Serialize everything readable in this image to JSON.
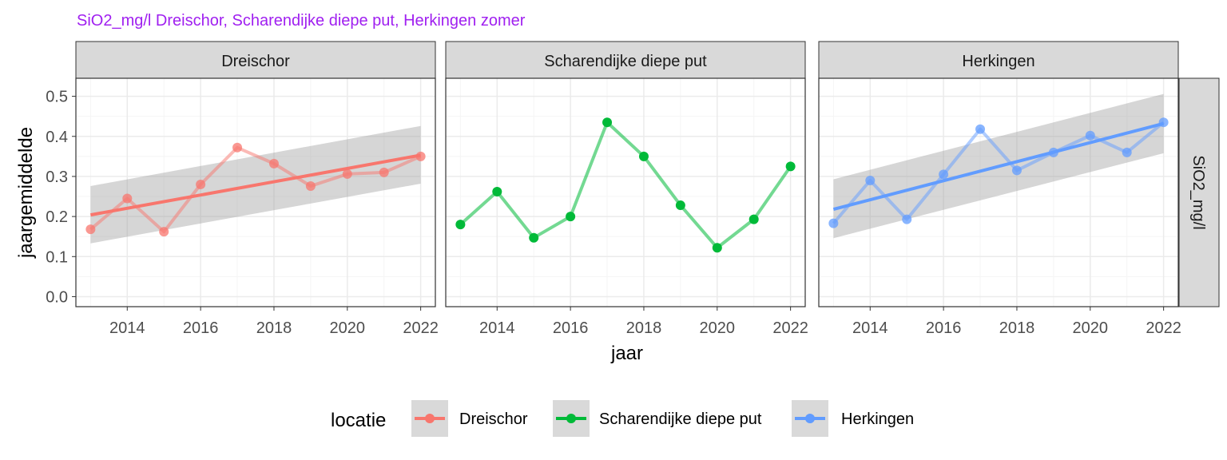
{
  "chart_data": {
    "type": "line",
    "title": "SiO2_mg/l Dreischor, Scharendijke diepe put, Herkingen zomer",
    "xlabel": "jaar",
    "ylabel": "jaargemiddelde",
    "strip_right": "SiO2_mg/l",
    "x": [
      2013,
      2014,
      2015,
      2016,
      2017,
      2018,
      2019,
      2020,
      2021,
      2022
    ],
    "xlim": [
      2012.6,
      2022.4
    ],
    "ylim": [
      -0.025,
      0.545
    ],
    "x_ticks": [
      2014,
      2016,
      2018,
      2020,
      2022
    ],
    "y_ticks": [
      0.0,
      0.1,
      0.2,
      0.3,
      0.4,
      0.5
    ],
    "y_tick_labels": [
      "0.0",
      "0.1",
      "0.2",
      "0.3",
      "0.4",
      "0.5"
    ],
    "grid": true,
    "legend": {
      "title": "locatie",
      "position": "bottom",
      "entries": [
        "Dreischor",
        "Scharendijke diepe put",
        "Herkingen"
      ]
    },
    "panels": [
      {
        "name": "Dreischor",
        "color": "#F8766D",
        "values": [
          0.168,
          0.245,
          0.162,
          0.28,
          0.372,
          0.332,
          0.276,
          0.306,
          0.31,
          0.35
        ],
        "trend": {
          "start": 0.204,
          "end": 0.353
        },
        "band": {
          "start_low": 0.133,
          "start_high": 0.276,
          "end_low": 0.282,
          "end_high": 0.426
        }
      },
      {
        "name": "Scharendijke diepe put",
        "color": "#00BA38",
        "values": [
          0.18,
          0.262,
          0.147,
          0.2,
          0.435,
          0.35,
          0.228,
          0.122,
          0.193,
          0.325
        ],
        "trend": null,
        "band": null
      },
      {
        "name": "Herkingen",
        "color": "#619CFF",
        "values": [
          0.183,
          0.29,
          0.193,
          0.305,
          0.418,
          0.315,
          0.36,
          0.402,
          0.36,
          0.435
        ],
        "trend": {
          "start": 0.218,
          "end": 0.432
        },
        "band": {
          "start_low": 0.146,
          "start_high": 0.293,
          "end_low": 0.358,
          "end_high": 0.506
        }
      }
    ]
  },
  "colors": {
    "title": "#A020F0",
    "strip_fill": "#D9D9D9",
    "band": "#999999",
    "grid_major": "#EBEBEB",
    "grid_minor": "#F5F5F5",
    "axis_text": "#4D4D4D"
  }
}
